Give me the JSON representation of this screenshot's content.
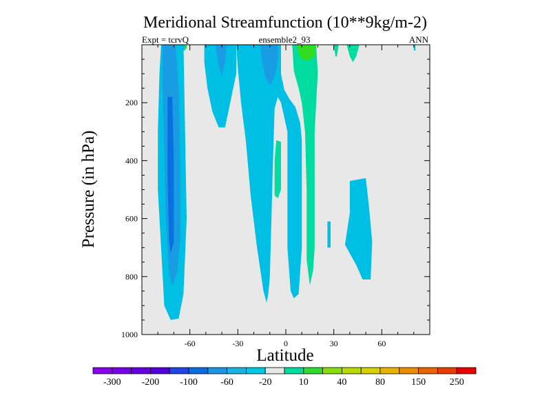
{
  "chart_data": {
    "type": "contour",
    "title": "Meridional Streamfunction (10**9kg/m-2)",
    "subtitle_left": "Expt = tcrvQ",
    "subtitle_center": "ensemble2_93",
    "subtitle_right": "ANN",
    "xlabel": "Latitude",
    "ylabel": "Pressure (in hPa)",
    "xlim": [
      -90,
      90
    ],
    "ylim": [
      1000,
      0
    ],
    "y_reversed": true,
    "x_ticks": [
      -60,
      -30,
      0,
      30,
      60
    ],
    "x_tick_labels": [
      "-60",
      "-30",
      "0",
      "30",
      "60"
    ],
    "y_ticks": [
      200,
      400,
      600,
      800,
      1000
    ],
    "y_tick_labels": [
      "200",
      "400",
      "600",
      "800",
      "1000"
    ],
    "background_level_color": "#e8e8e8",
    "colorbar": {
      "colors": [
        "#8800ee",
        "#7700e8",
        "#6600e0",
        "#5000dc",
        "#2244e6",
        "#0a6ce0",
        "#1a96e2",
        "#1ab2e2",
        "#00c8e4",
        "#e6e6e6",
        "#00dca0",
        "#2edc2e",
        "#88dc0a",
        "#b8dc00",
        "#d8d000",
        "#e8b400",
        "#ec8c00",
        "#e86400",
        "#e83c00",
        "#e80000"
      ],
      "labels": [
        "-300",
        "-200",
        "-100",
        "-60",
        "-20",
        "10",
        "40",
        "80",
        "150",
        "250"
      ]
    },
    "regions": [
      {
        "level": -20,
        "color": "#00bfe4",
        "points": [
          [
            -78,
            0
          ],
          [
            -64,
            0
          ],
          [
            -63,
            300
          ],
          [
            -62,
            600
          ],
          [
            -64,
            860
          ],
          [
            -67,
            945
          ],
          [
            -72,
            950
          ],
          [
            -76,
            900
          ],
          [
            -78,
            700
          ],
          [
            -80,
            500
          ],
          [
            -80,
            300
          ],
          [
            -79,
            100
          ]
        ]
      },
      {
        "level": -60,
        "color": "#1a9ce2",
        "points": [
          [
            -77,
            0
          ],
          [
            -69,
            0
          ],
          [
            -67,
            150
          ],
          [
            -66,
            400
          ],
          [
            -66,
            680
          ],
          [
            -68,
            790
          ],
          [
            -71,
            830
          ],
          [
            -73,
            790
          ],
          [
            -75,
            600
          ],
          [
            -76,
            350
          ],
          [
            -77,
            150
          ]
        ]
      },
      {
        "level": -100,
        "color": "#0a70e2",
        "points": [
          [
            -74,
            180
          ],
          [
            -71,
            180
          ],
          [
            -70,
            400
          ],
          [
            -70,
            680
          ],
          [
            -72,
            720
          ],
          [
            -73,
            680
          ],
          [
            -74,
            450
          ]
        ]
      },
      {
        "level": -20,
        "color": "#00bfe4",
        "points": [
          [
            -65,
            0
          ],
          [
            -63,
            0
          ],
          [
            -63,
            20
          ],
          [
            -65,
            20
          ]
        ]
      },
      {
        "level": -20,
        "color": "#00bfe4",
        "points": [
          [
            -51,
            0
          ],
          [
            -31,
            0
          ],
          [
            -31,
            100
          ],
          [
            -34,
            180
          ],
          [
            -38,
            285
          ],
          [
            -42,
            285
          ],
          [
            -46,
            230
          ],
          [
            -49,
            150
          ],
          [
            -51,
            60
          ]
        ]
      },
      {
        "level": -60,
        "color": "#1a9ce2",
        "points": [
          [
            -44,
            0
          ],
          [
            -37,
            0
          ],
          [
            -38,
            60
          ],
          [
            -40,
            110
          ],
          [
            -42,
            70
          ]
        ]
      },
      {
        "level": -20,
        "color": "#00bfe4",
        "points": [
          [
            -31,
            0
          ],
          [
            -3,
            0
          ],
          [
            -3,
            100
          ],
          [
            -1,
            155
          ],
          [
            2,
            185
          ],
          [
            6,
            215
          ],
          [
            9,
            270
          ],
          [
            10,
            330
          ],
          [
            10,
            700
          ],
          [
            8,
            860
          ],
          [
            5,
            875
          ],
          [
            3,
            850
          ],
          [
            1,
            700
          ],
          [
            1,
            300
          ],
          [
            -1,
            250
          ],
          [
            -3,
            200
          ],
          [
            -5,
            180
          ],
          [
            -7,
            220
          ],
          [
            -8,
            400
          ],
          [
            -9,
            600
          ],
          [
            -10,
            800
          ],
          [
            -11,
            860
          ],
          [
            -12,
            890
          ],
          [
            -14,
            850
          ],
          [
            -18,
            700
          ],
          [
            -22,
            520
          ],
          [
            -25,
            330
          ],
          [
            -28,
            200
          ],
          [
            -30,
            80
          ]
        ]
      },
      {
        "level": -60,
        "color": "#1a9ce2",
        "points": [
          [
            -16,
            0
          ],
          [
            -5,
            0
          ],
          [
            -5,
            50
          ],
          [
            -7,
            110
          ],
          [
            -10,
            140
          ],
          [
            -13,
            110
          ],
          [
            -15,
            50
          ]
        ]
      },
      {
        "level": -20,
        "color": "#00bfe4",
        "points": [
          [
            40,
            470
          ],
          [
            50,
            460
          ],
          [
            52,
            560
          ],
          [
            54,
            680
          ],
          [
            53,
            810
          ],
          [
            48,
            810
          ],
          [
            44,
            760
          ],
          [
            40,
            720
          ],
          [
            37,
            690
          ],
          [
            40,
            580
          ]
        ]
      },
      {
        "level": -20,
        "color": "#00bfe4",
        "points": [
          [
            26,
            610
          ],
          [
            28,
            610
          ],
          [
            28,
            700
          ],
          [
            26,
            700
          ]
        ]
      },
      {
        "level": 10,
        "color": "#00dca0",
        "points": [
          [
            4,
            0
          ],
          [
            19,
            0
          ],
          [
            20,
            100
          ],
          [
            19,
            200
          ],
          [
            18,
            300
          ],
          [
            18,
            500
          ],
          [
            18,
            700
          ],
          [
            17,
            780
          ],
          [
            15,
            830
          ],
          [
            13,
            740
          ],
          [
            13,
            500
          ],
          [
            12,
            300
          ],
          [
            10,
            200
          ],
          [
            8,
            150
          ],
          [
            5,
            90
          ]
        ]
      },
      {
        "level": 10,
        "color": "#00dca0",
        "points": [
          [
            -6,
            330
          ],
          [
            -3,
            335
          ],
          [
            -3,
            500
          ],
          [
            -5,
            530
          ],
          [
            -7,
            520
          ],
          [
            -7,
            400
          ]
        ]
      },
      {
        "level": 10,
        "color": "#00dca0",
        "points": [
          [
            30,
            0
          ],
          [
            33,
            0
          ],
          [
            32,
            40
          ],
          [
            31,
            40
          ]
        ]
      },
      {
        "level": 10,
        "color": "#00dca0",
        "points": [
          [
            38,
            0
          ],
          [
            46,
            0
          ],
          [
            44,
            40
          ],
          [
            42,
            60
          ],
          [
            40,
            40
          ]
        ]
      },
      {
        "level": 40,
        "color": "#33dc22",
        "points": [
          [
            7,
            0
          ],
          [
            19,
            0
          ],
          [
            18,
            40
          ],
          [
            14,
            55
          ],
          [
            10,
            50
          ],
          [
            8,
            30
          ]
        ]
      },
      {
        "level": 40,
        "color": "#33dc22",
        "points": [
          [
            -63,
            0
          ],
          [
            -62,
            0
          ],
          [
            -62,
            15
          ],
          [
            -63,
            15
          ]
        ]
      },
      {
        "level": -20,
        "color": "#00bfe4",
        "points": [
          [
            80,
            0
          ],
          [
            81,
            0
          ],
          [
            81,
            20
          ],
          [
            80,
            20
          ]
        ]
      }
    ]
  }
}
